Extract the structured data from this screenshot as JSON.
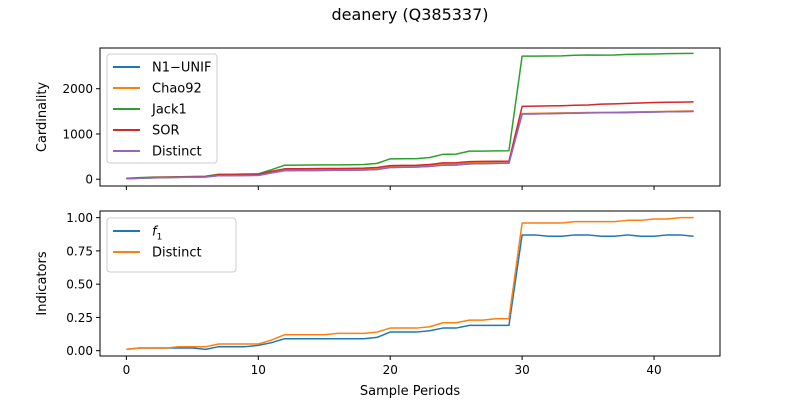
{
  "title": "deanery (Q385337)",
  "colors": {
    "blue": "#1f77b4",
    "orange": "#ff7f0e",
    "green": "#2ca02c",
    "red": "#d62728",
    "purple": "#9467bd"
  },
  "chart_data": [
    {
      "type": "line",
      "panel": "top",
      "xlabel": "",
      "ylabel": "Cardinality",
      "xlim": [
        -2,
        45
      ],
      "ylim": [
        -150,
        2900
      ],
      "xticks": [
        0,
        10,
        20,
        30,
        40
      ],
      "show_xtick_labels": false,
      "yticks": [
        0,
        1000,
        2000
      ],
      "grid": false,
      "legend_position": "upper-left",
      "x": [
        0,
        1,
        2,
        3,
        4,
        5,
        6,
        7,
        8,
        9,
        10,
        11,
        12,
        13,
        14,
        15,
        16,
        17,
        18,
        19,
        20,
        21,
        22,
        23,
        24,
        25,
        26,
        27,
        28,
        29,
        30,
        31,
        32,
        33,
        34,
        35,
        36,
        37,
        38,
        39,
        40,
        41,
        42,
        43
      ],
      "series": [
        {
          "name": "N1−UNIF",
          "color": "#1f77b4",
          "values": [
            10,
            20,
            30,
            35,
            40,
            45,
            50,
            80,
            80,
            82,
            85,
            140,
            190,
            192,
            194,
            196,
            198,
            200,
            205,
            215,
            260,
            265,
            270,
            285,
            310,
            315,
            340,
            345,
            350,
            355,
            1440,
            1445,
            1450,
            1455,
            1460,
            1465,
            1468,
            1470,
            1475,
            1480,
            1485,
            1490,
            1495,
            1500
          ]
        },
        {
          "name": "Chao92",
          "color": "#ff7f0e",
          "values": [
            12,
            25,
            35,
            40,
            45,
            50,
            55,
            90,
            92,
            95,
            100,
            155,
            205,
            208,
            210,
            212,
            215,
            218,
            222,
            232,
            280,
            285,
            292,
            308,
            335,
            340,
            365,
            372,
            378,
            385,
            1450,
            1455,
            1460,
            1465,
            1470,
            1475,
            1478,
            1480,
            1485,
            1490,
            1495,
            1500,
            1505,
            1510
          ]
        },
        {
          "name": "Jack1",
          "color": "#2ca02c",
          "values": [
            20,
            35,
            45,
            50,
            55,
            60,
            65,
            110,
            110,
            115,
            120,
            210,
            310,
            312,
            314,
            316,
            318,
            320,
            325,
            350,
            450,
            452,
            455,
            480,
            550,
            555,
            620,
            622,
            625,
            630,
            2720,
            2720,
            2722,
            2725,
            2740,
            2745,
            2742,
            2745,
            2760,
            2765,
            2768,
            2775,
            2778,
            2780
          ]
        },
        {
          "name": "SOR",
          "color": "#d62728",
          "values": [
            15,
            28,
            38,
            42,
            48,
            52,
            58,
            100,
            100,
            104,
            108,
            175,
            230,
            232,
            234,
            236,
            238,
            240,
            245,
            260,
            300,
            305,
            310,
            325,
            360,
            365,
            390,
            393,
            396,
            400,
            1610,
            1615,
            1620,
            1625,
            1635,
            1640,
            1660,
            1665,
            1675,
            1685,
            1695,
            1700,
            1705,
            1710
          ]
        },
        {
          "name": "Distinct",
          "color": "#9467bd",
          "values": [
            10,
            20,
            30,
            35,
            40,
            45,
            50,
            80,
            80,
            82,
            85,
            140,
            190,
            192,
            194,
            196,
            198,
            200,
            205,
            215,
            260,
            265,
            270,
            285,
            310,
            315,
            340,
            345,
            350,
            355,
            1440,
            1445,
            1450,
            1455,
            1460,
            1465,
            1468,
            1470,
            1475,
            1480,
            1485,
            1490,
            1495,
            1500
          ]
        }
      ]
    },
    {
      "type": "line",
      "panel": "bottom",
      "xlabel": "Sample Periods",
      "ylabel": "Indicators",
      "xlim": [
        -2,
        45
      ],
      "ylim": [
        -0.04,
        1.05
      ],
      "xticks": [
        0,
        10,
        20,
        30,
        40
      ],
      "show_xtick_labels": true,
      "yticks": [
        0.0,
        0.25,
        0.5,
        0.75,
        1.0
      ],
      "ytick_labels": [
        "0.00",
        "0.25",
        "0.50",
        "0.75",
        "1.00"
      ],
      "grid": false,
      "legend_position": "upper-left",
      "x": [
        0,
        1,
        2,
        3,
        4,
        5,
        6,
        7,
        8,
        9,
        10,
        11,
        12,
        13,
        14,
        15,
        16,
        17,
        18,
        19,
        20,
        21,
        22,
        23,
        24,
        25,
        26,
        27,
        28,
        29,
        30,
        31,
        32,
        33,
        34,
        35,
        36,
        37,
        38,
        39,
        40,
        41,
        42,
        43
      ],
      "series": [
        {
          "name": "f1",
          "label_main": "f",
          "label_sub": "1",
          "color": "#1f77b4",
          "values": [
            0.01,
            0.02,
            0.02,
            0.02,
            0.02,
            0.02,
            0.01,
            0.03,
            0.03,
            0.03,
            0.04,
            0.06,
            0.09,
            0.09,
            0.09,
            0.09,
            0.09,
            0.09,
            0.09,
            0.1,
            0.14,
            0.14,
            0.14,
            0.15,
            0.17,
            0.17,
            0.19,
            0.19,
            0.19,
            0.19,
            0.87,
            0.87,
            0.86,
            0.86,
            0.87,
            0.87,
            0.86,
            0.86,
            0.87,
            0.86,
            0.86,
            0.87,
            0.87,
            0.86
          ]
        },
        {
          "name": "Distinct",
          "color": "#ff7f0e",
          "values": [
            0.01,
            0.02,
            0.02,
            0.02,
            0.03,
            0.03,
            0.03,
            0.05,
            0.05,
            0.05,
            0.05,
            0.08,
            0.12,
            0.12,
            0.12,
            0.12,
            0.13,
            0.13,
            0.13,
            0.14,
            0.17,
            0.17,
            0.17,
            0.18,
            0.21,
            0.21,
            0.23,
            0.23,
            0.24,
            0.24,
            0.96,
            0.96,
            0.96,
            0.96,
            0.97,
            0.97,
            0.97,
            0.97,
            0.98,
            0.98,
            0.99,
            0.99,
            1.0,
            1.0
          ]
        }
      ]
    }
  ]
}
